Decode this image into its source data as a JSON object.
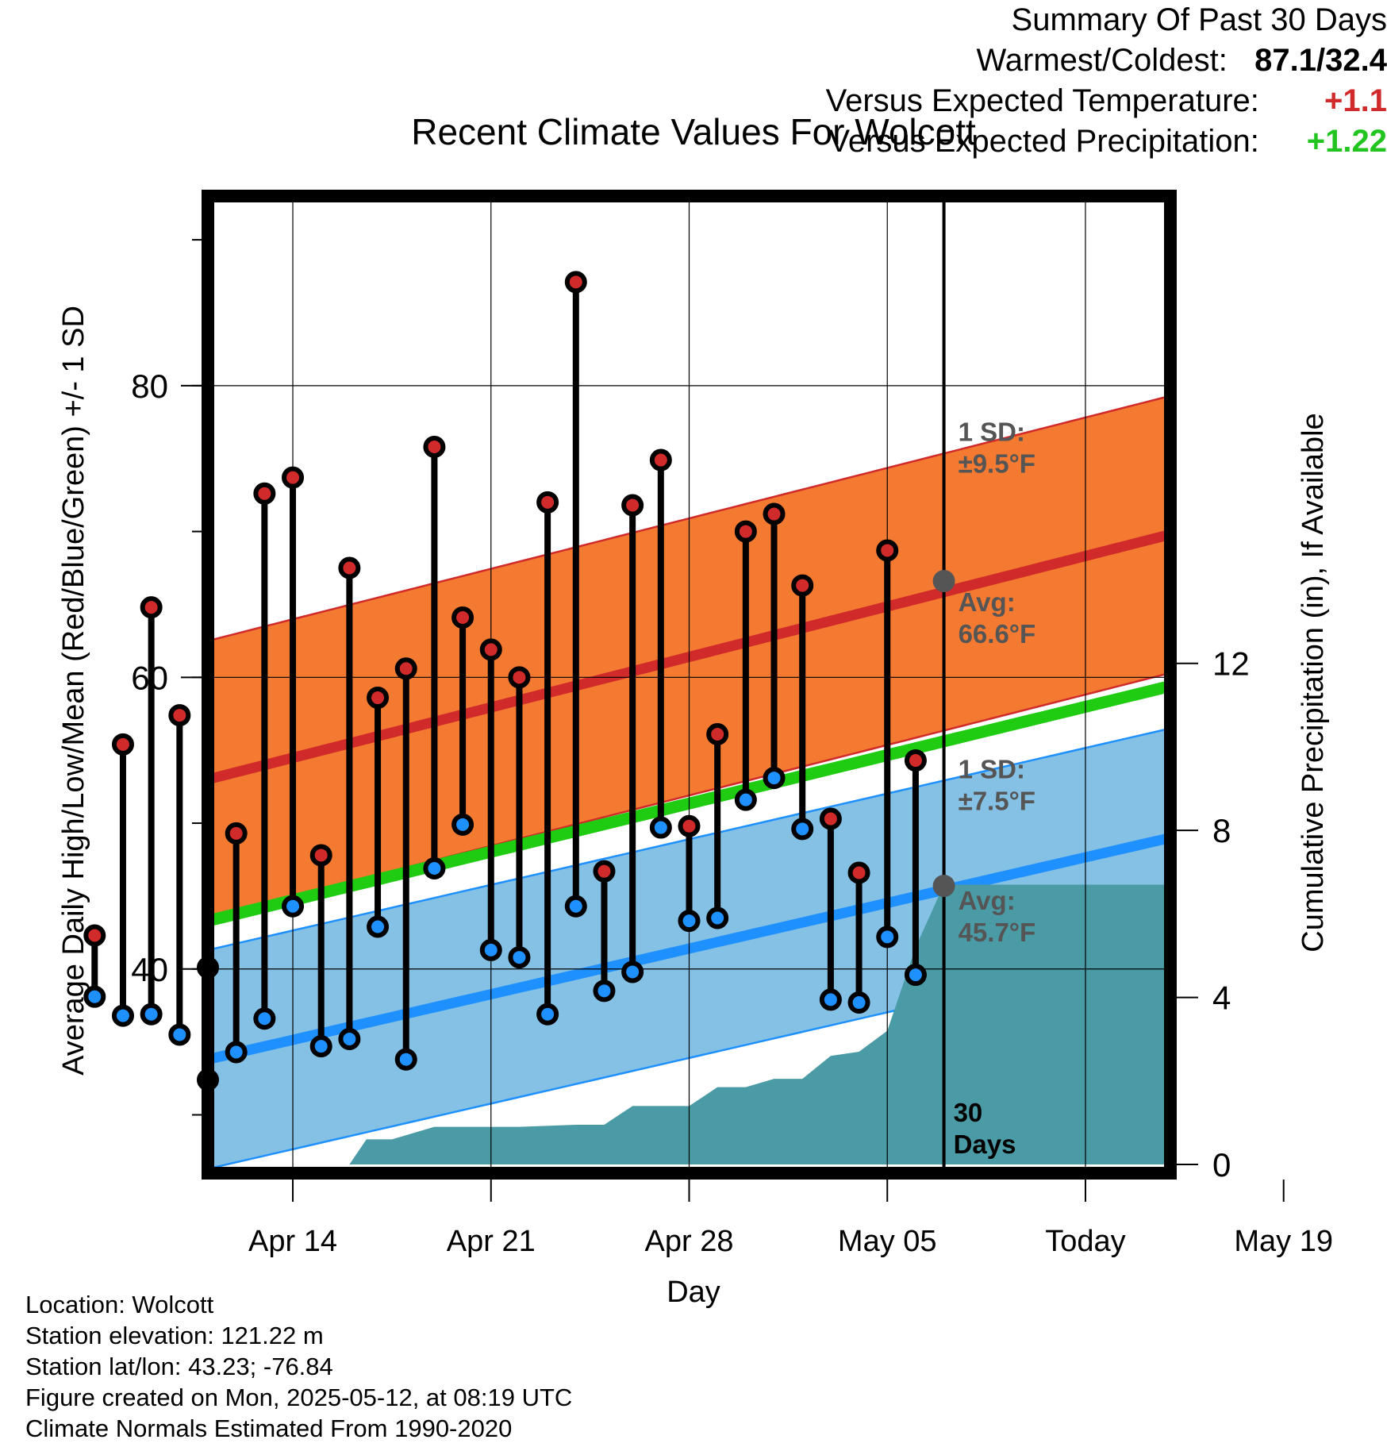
{
  "chart_data": {
    "type": "line",
    "title": "Recent Climate Values For Wolcott",
    "xlabel": "Day",
    "ylabel": "Average Daily High/Low/Mean (Red/Blue/Green) +/- 1 SD",
    "y2label": "Cumulative Precipitation (in), If Available",
    "ylim": [
      26,
      93
    ],
    "y2lim": [
      0,
      23
    ],
    "xlim": [
      11,
      45
    ],
    "today": 37,
    "today_label": "30\nDays",
    "yticks": [
      40,
      60,
      80
    ],
    "y2ticks": [
      0,
      4,
      8,
      12
    ],
    "xticks": [
      {
        "x": 14,
        "label": "Apr 14"
      },
      {
        "x": 21,
        "label": "Apr 21"
      },
      {
        "x": 28,
        "label": "Apr 28"
      },
      {
        "x": 35,
        "label": "May 05"
      },
      {
        "x": 42,
        "label": "Today"
      },
      {
        "x": 49,
        "label": "May 19"
      }
    ],
    "normal_high": {
      "avg_start": 53.0,
      "avg_end": 69.8,
      "sd": 9.5,
      "sd_label": "1 SD:\n±9.5°F",
      "avg_label": "Avg:\n66.6°F",
      "today_avg": 66.6
    },
    "normal_low": {
      "avg_start": 33.8,
      "avg_end": 49.0,
      "sd": 7.5,
      "sd_label": "1 SD:\n±7.5°F",
      "avg_label": "Avg:\n45.7°F",
      "today_avg": 45.7
    },
    "normal_mean": {
      "start": 43.3,
      "end": 59.4
    },
    "series": [
      {
        "name": "Daily High",
        "values": [
          42.3,
          55.4,
          64.8,
          57.4,
          40.1,
          49.3,
          72.6,
          73.7,
          47.8,
          67.5,
          58.6,
          60.6,
          75.8,
          64.1,
          61.9,
          60.0,
          72.0,
          87.1,
          46.7,
          71.8,
          74.9,
          49.8,
          56.1,
          70.0,
          71.2,
          66.3,
          50.3,
          46.6,
          68.7,
          54.3
        ]
      },
      {
        "name": "Daily Low",
        "values": [
          38.1,
          36.8,
          36.9,
          35.5,
          32.4,
          34.3,
          36.6,
          44.3,
          34.7,
          35.2,
          42.9,
          33.8,
          46.9,
          49.9,
          41.3,
          40.8,
          36.9,
          44.3,
          38.5,
          39.8,
          49.7,
          43.3,
          43.5,
          51.6,
          53.1,
          49.6,
          37.9,
          37.7,
          42.2,
          39.6
        ]
      },
      {
        "name": "Cumulative Precipitation",
        "x": [
          16,
          16.6,
          17.5,
          19,
          21,
          22,
          24,
          25,
          26,
          27,
          28,
          29,
          30,
          31,
          32,
          33,
          34,
          35,
          36,
          37,
          38,
          45
        ],
        "values": [
          0,
          0.6,
          0.6,
          0.9,
          0.9,
          0.9,
          0.95,
          0.95,
          1.4,
          1.4,
          1.4,
          1.85,
          1.85,
          2.05,
          2.05,
          2.6,
          2.7,
          3.2,
          5.2,
          6.7,
          6.7,
          6.7
        ]
      }
    ]
  },
  "footer": {
    "location": "Location: Wolcott",
    "elevation": "Station elevation: 121.22 m",
    "latlon": "Station lat/lon: 43.23; -76.84",
    "created": "Figure created on Mon, 2025-05-12, at 08:19 UTC",
    "normals": "Climate Normals Estimated From 1990-2020"
  },
  "summary": {
    "heading": "Summary Of Past 30 Days",
    "warm_label": "Warmest/Coldest:",
    "warm_value": "87.1/32.4",
    "temp_label": "Versus Expected Temperature:",
    "temp_value": "+1.1",
    "precip_label": "Versus Expected Precipitation:",
    "precip_value": "+1.22"
  },
  "colors": {
    "high_band": "#f37a30",
    "high_avg": "#d12a2a",
    "low_band": "#85c1e5",
    "low_avg": "#1e90ff",
    "mean": "#1fcc11",
    "precip": "#4a9ba6",
    "high_point": "#d12a2a",
    "low_point": "#1e90ff",
    "annotation": "#555555"
  }
}
